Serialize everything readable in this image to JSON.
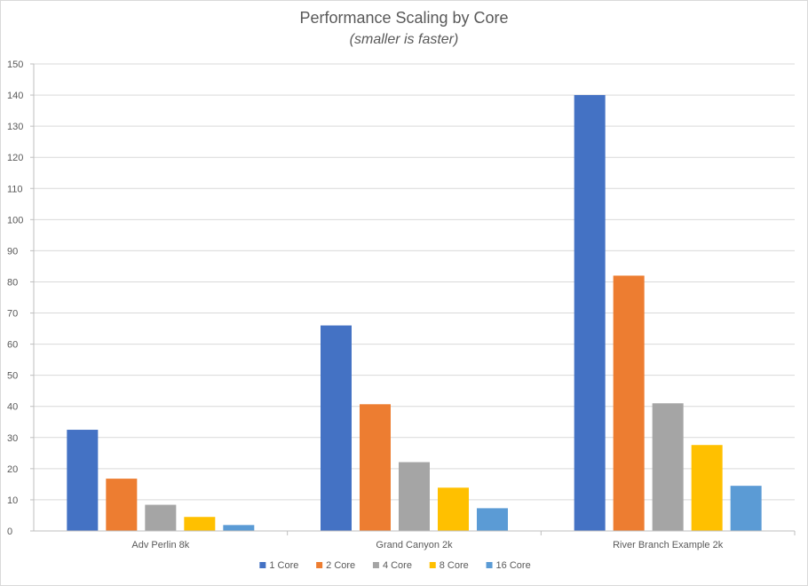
{
  "chart_data": {
    "type": "bar",
    "title": "Performance Scaling by Core",
    "subtitle": "(smaller is faster)",
    "xlabel": "",
    "ylabel": "",
    "categories": [
      "Adv Perlin 8k",
      "Grand Canyon 2k",
      "River Branch Example 2k"
    ],
    "ylim": [
      0,
      150
    ],
    "ytick_step": 10,
    "grid": true,
    "legend_position": "bottom",
    "series": [
      {
        "name": "1 Core",
        "color": "#4472c4",
        "values": [
          32.5,
          66,
          140
        ]
      },
      {
        "name": "2 Core",
        "color": "#ed7d31",
        "values": [
          16.8,
          40.7,
          82
        ]
      },
      {
        "name": "4 Core",
        "color": "#a5a5a5",
        "values": [
          8.4,
          22.1,
          41
        ]
      },
      {
        "name": "8 Core",
        "color": "#ffc000",
        "values": [
          4.5,
          13.9,
          27.6
        ]
      },
      {
        "name": "16 Core",
        "color": "#5b9bd5",
        "values": [
          1.9,
          7.3,
          14.5
        ]
      }
    ]
  }
}
